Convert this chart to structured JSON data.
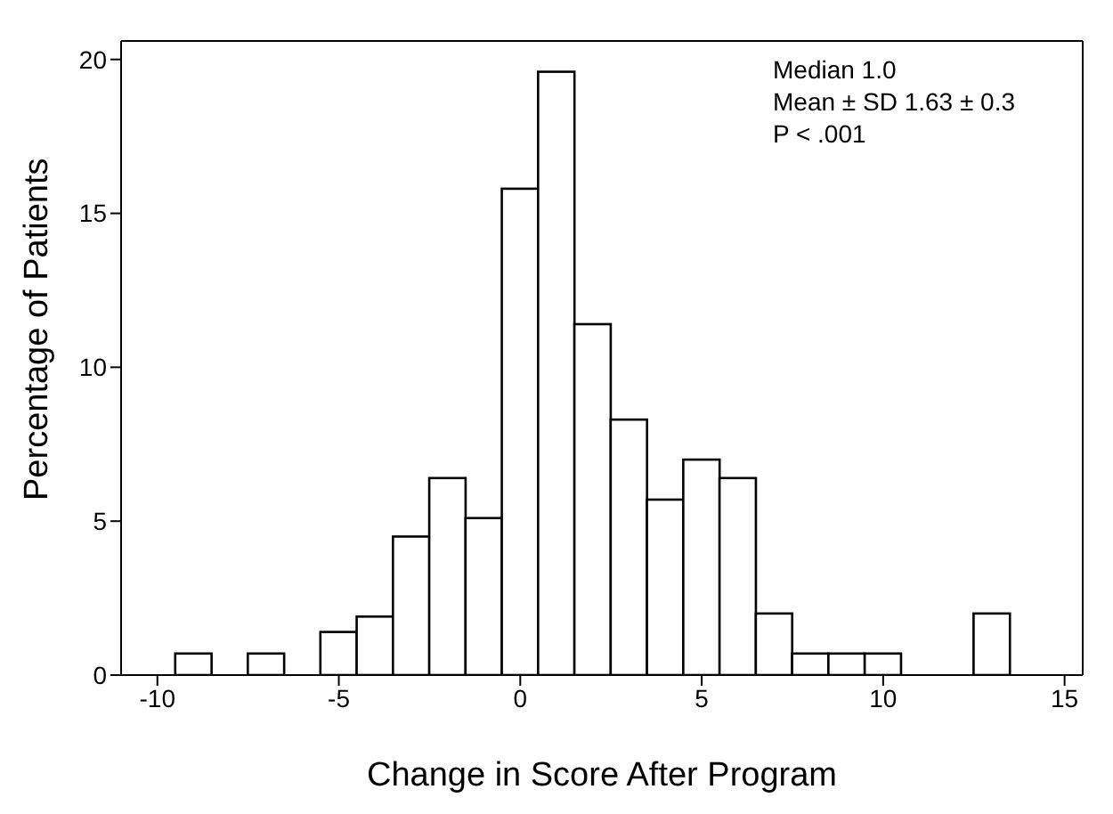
{
  "chart_data": {
    "type": "histogram",
    "xlabel": "Change in Score After Program",
    "ylabel": "Percentage of Patients",
    "bins": [
      -9.5,
      -8.5,
      -7.5,
      -6.5,
      -5.5,
      -4.5,
      -3.5,
      -2.5,
      -1.5,
      -0.5,
      0.5,
      1.5,
      2.5,
      3.5,
      4.5,
      5.5,
      6.5,
      7.5,
      8.5,
      9.5,
      10.5,
      11.5,
      12.5,
      13.5
    ],
    "values": [
      0.7,
      0,
      0.7,
      0,
      1.4,
      1.9,
      4.5,
      6.4,
      5.1,
      15.8,
      19.6,
      11.4,
      8.3,
      5.7,
      7.0,
      6.4,
      2.0,
      0.7,
      0.7,
      0.7,
      0,
      0,
      2.0
    ],
    "color": "#ffffff",
    "xlim": [
      -11,
      15.5
    ],
    "xticks": [
      -10,
      -5,
      0,
      5,
      10,
      15
    ],
    "ylim": [
      0,
      20.6
    ],
    "yticks": [
      0,
      5,
      10,
      15,
      20
    ],
    "grid": false,
    "annotations": [
      "Median 1.0",
      "Mean ± SD 1.63 ± 0.3",
      "P < .001"
    ]
  }
}
